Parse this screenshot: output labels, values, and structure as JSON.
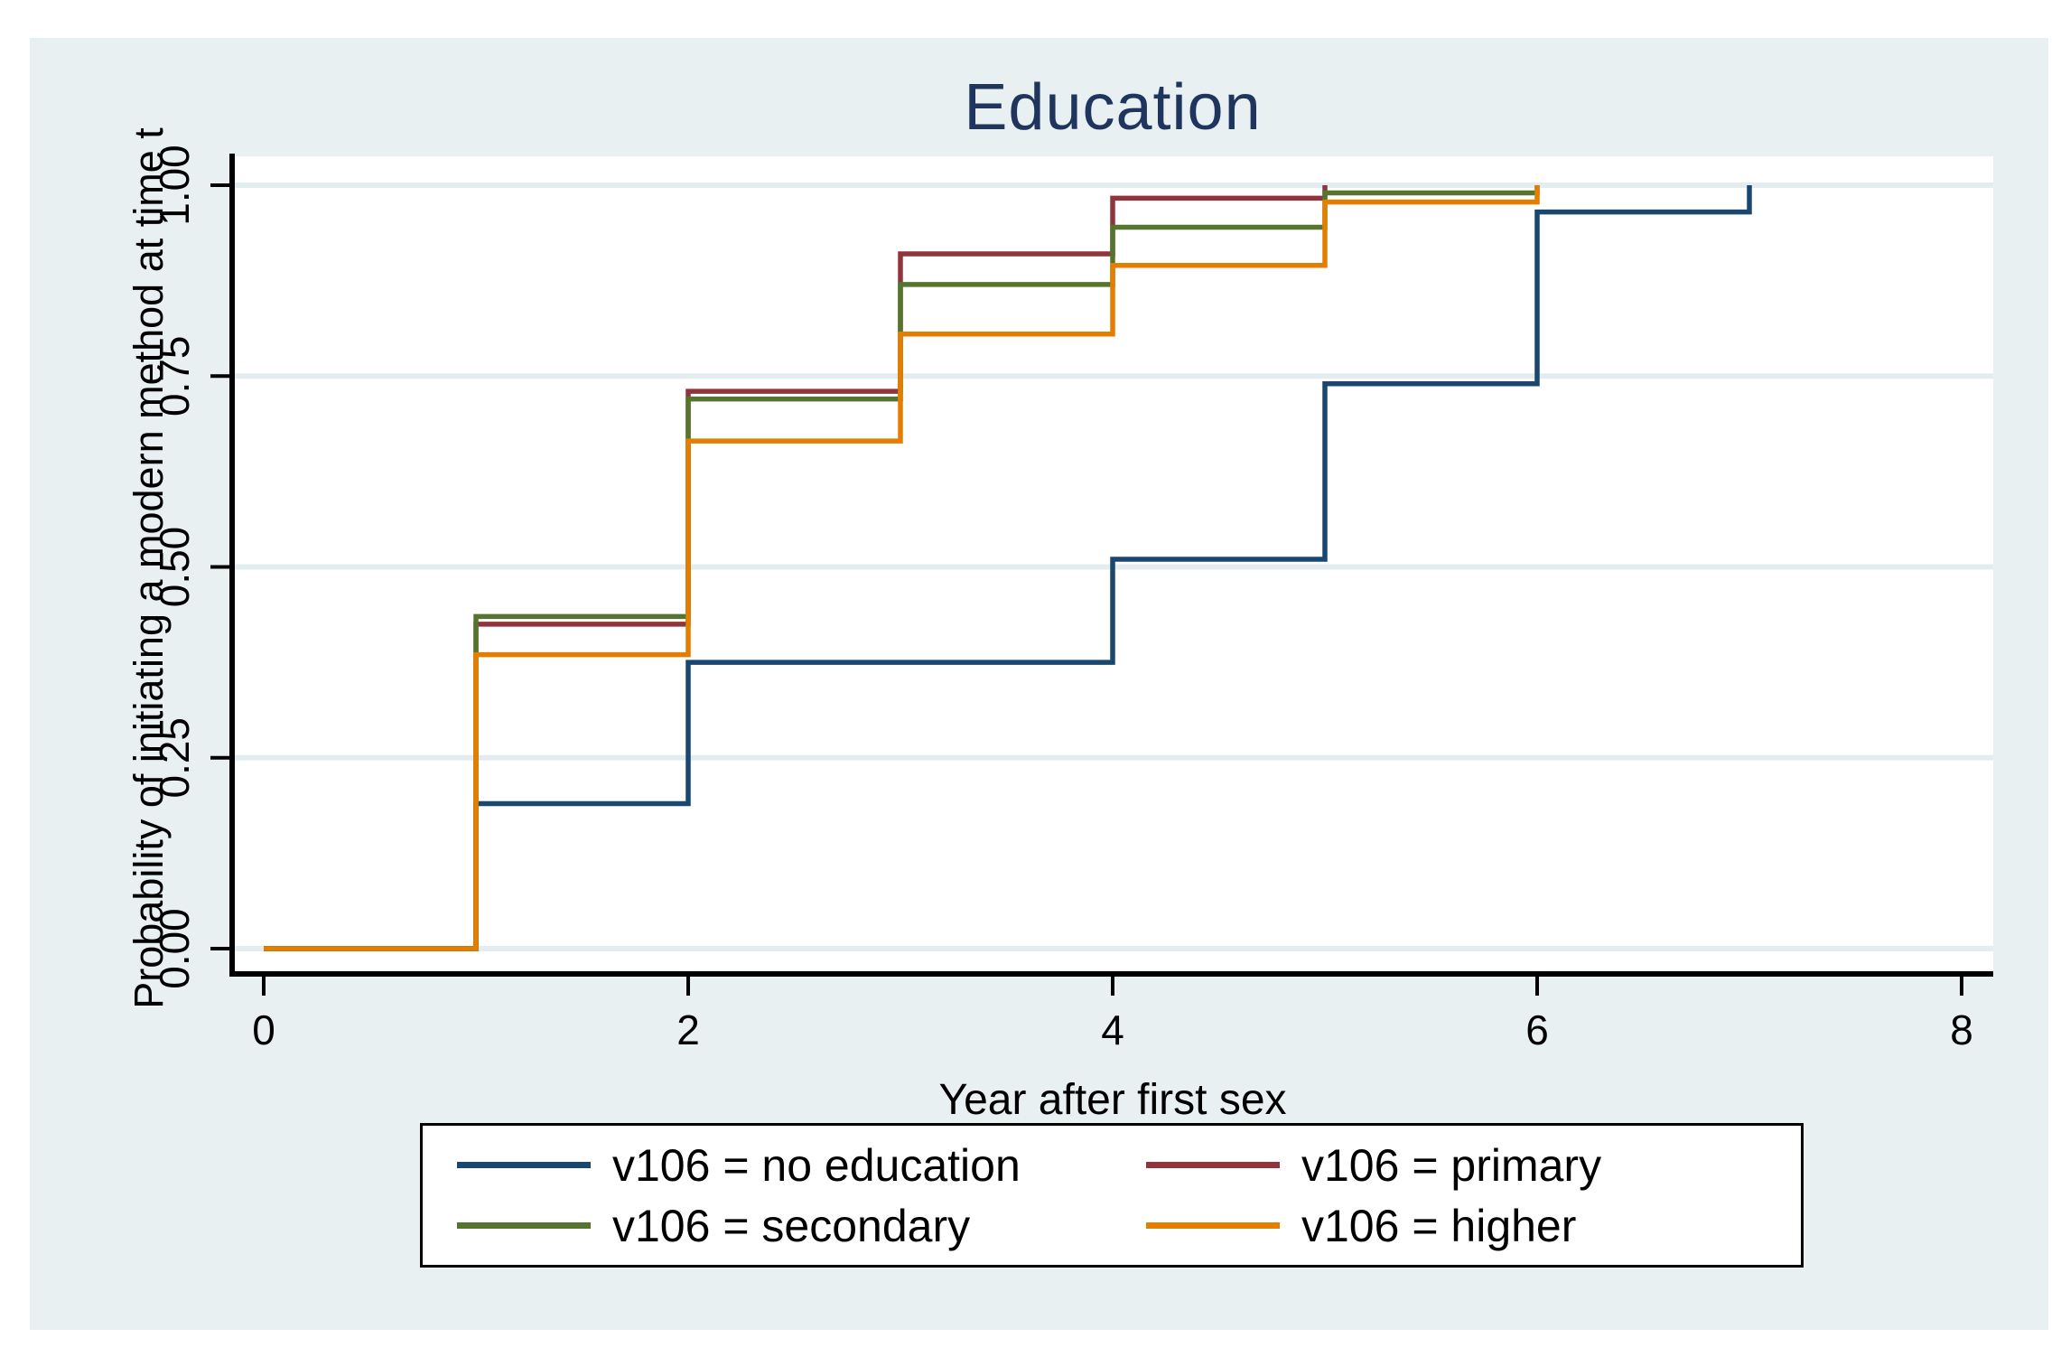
{
  "title": "Education",
  "colors": {
    "background": "#e8f0f2",
    "plot_background": "#ffffff",
    "gridline": "#e3edf0",
    "axis": "#000000",
    "title_text": "#1f355e",
    "navy": "#1a476f",
    "maroon": "#90353b",
    "green": "#55752f",
    "orange": "#e37e00"
  },
  "legend": {
    "items": [
      {
        "label": "v106 = no education",
        "color": "#1a476f"
      },
      {
        "label": "v106 = primary",
        "color": "#90353b"
      },
      {
        "label": "v106 = secondary",
        "color": "#55752f"
      },
      {
        "label": "v106 = higher",
        "color": "#e37e00"
      }
    ]
  },
  "chart_data": {
    "type": "line",
    "subtype": "step-failure-function",
    "title": "Education",
    "xlabel": "Year after first sex",
    "ylabel": "Probability of initiating a modern method at time t",
    "xlim": [
      0,
      8
    ],
    "ylim": [
      0,
      1
    ],
    "grid": "horizontal",
    "legend_position": "bottom",
    "xticks": [
      {
        "v": 0,
        "label": "0"
      },
      {
        "v": 2,
        "label": "2"
      },
      {
        "v": 4,
        "label": "4"
      },
      {
        "v": 6,
        "label": "6"
      },
      {
        "v": 8,
        "label": "8"
      }
    ],
    "yticks": [
      {
        "v": 0.0,
        "label": "0.00"
      },
      {
        "v": 0.25,
        "label": "0.25"
      },
      {
        "v": 0.5,
        "label": "0.50"
      },
      {
        "v": 0.75,
        "label": "0.75"
      },
      {
        "v": 1.0,
        "label": "1.00"
      }
    ],
    "series": [
      {
        "name": "v106 = no education",
        "color": "#1a476f",
        "points": [
          [
            0,
            0
          ],
          [
            1,
            0
          ],
          [
            1,
            0.19
          ],
          [
            2,
            0.19
          ],
          [
            2,
            0.375
          ],
          [
            4,
            0.375
          ],
          [
            4,
            0.51
          ],
          [
            5,
            0.51
          ],
          [
            5,
            0.74
          ],
          [
            6,
            0.74
          ],
          [
            6,
            0.965
          ],
          [
            7,
            0.965
          ],
          [
            7,
            1.0
          ]
        ]
      },
      {
        "name": "v106 = primary",
        "color": "#90353b",
        "points": [
          [
            0,
            0
          ],
          [
            1,
            0
          ],
          [
            1,
            0.425
          ],
          [
            2,
            0.425
          ],
          [
            2,
            0.73
          ],
          [
            3,
            0.73
          ],
          [
            3,
            0.91
          ],
          [
            4,
            0.91
          ],
          [
            4,
            0.983
          ],
          [
            5,
            0.983
          ],
          [
            5,
            1.0
          ]
        ]
      },
      {
        "name": "v106 = secondary",
        "color": "#55752f",
        "points": [
          [
            0,
            0
          ],
          [
            1,
            0
          ],
          [
            1,
            0.435
          ],
          [
            2,
            0.435
          ],
          [
            2,
            0.72
          ],
          [
            3,
            0.72
          ],
          [
            3,
            0.87
          ],
          [
            4,
            0.87
          ],
          [
            4,
            0.945
          ],
          [
            5,
            0.945
          ],
          [
            5,
            0.99
          ],
          [
            6,
            0.99
          ],
          [
            6,
            1.0
          ]
        ]
      },
      {
        "name": "v106 = higher",
        "color": "#e37e00",
        "points": [
          [
            0,
            0
          ],
          [
            1,
            0
          ],
          [
            1,
            0.385
          ],
          [
            2,
            0.385
          ],
          [
            2,
            0.665
          ],
          [
            3,
            0.665
          ],
          [
            3,
            0.805
          ],
          [
            4,
            0.805
          ],
          [
            4,
            0.895
          ],
          [
            5,
            0.895
          ],
          [
            5,
            0.978
          ],
          [
            6,
            0.978
          ],
          [
            6,
            1.0
          ]
        ]
      }
    ]
  }
}
